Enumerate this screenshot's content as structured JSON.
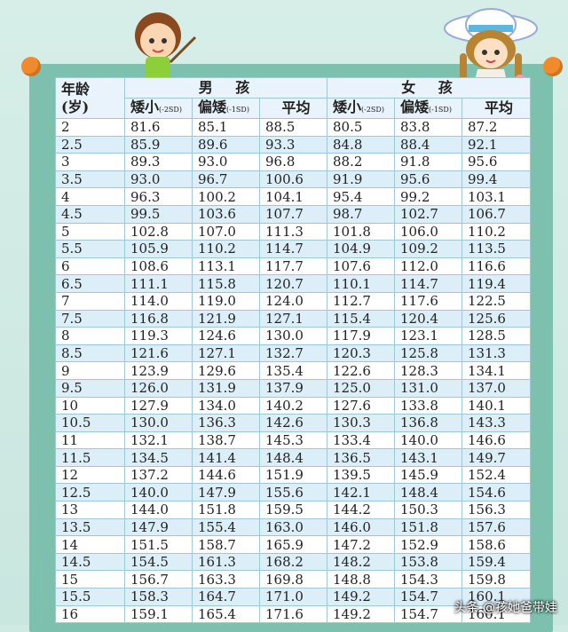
{
  "headers": {
    "age_label_1": "年龄",
    "age_label_2": "(岁)",
    "boy_group": "男 孩",
    "girl_group": "女 孩",
    "col_short": "矮小",
    "col_short_note": "(-2SD)",
    "col_low": "偏矮",
    "col_low_note": "(-1SD)",
    "col_avg": "平均"
  },
  "rows": [
    [
      "2",
      "81.6",
      "85.1",
      "88.5",
      "80.5",
      "83.8",
      "87.2"
    ],
    [
      "2.5",
      "85.9",
      "89.6",
      "93.3",
      "84.8",
      "88.4",
      "92.1"
    ],
    [
      "3",
      "89.3",
      "93.0",
      "96.8",
      "88.2",
      "91.8",
      "95.6"
    ],
    [
      "3.5",
      "93.0",
      "96.7",
      "100.6",
      "91.9",
      "95.6",
      "99.4"
    ],
    [
      "4",
      "96.3",
      "100.2",
      "104.1",
      "95.4",
      "99.2",
      "103.1"
    ],
    [
      "4.5",
      "99.5",
      "103.6",
      "107.7",
      "98.7",
      "102.7",
      "106.7"
    ],
    [
      "5",
      "102.8",
      "107.0",
      "111.3",
      "101.8",
      "106.0",
      "110.2"
    ],
    [
      "5.5",
      "105.9",
      "110.2",
      "114.7",
      "104.9",
      "109.2",
      "113.5"
    ],
    [
      "6",
      "108.6",
      "113.1",
      "117.7",
      "107.6",
      "112.0",
      "116.6"
    ],
    [
      "6.5",
      "111.1",
      "115.8",
      "120.7",
      "110.1",
      "114.7",
      "119.4"
    ],
    [
      "7",
      "114.0",
      "119.0",
      "124.0",
      "112.7",
      "117.6",
      "122.5"
    ],
    [
      "7.5",
      "116.8",
      "121.9",
      "127.1",
      "115.4",
      "120.4",
      "125.6"
    ],
    [
      "8",
      "119.3",
      "124.6",
      "130.0",
      "117.9",
      "123.1",
      "128.5"
    ],
    [
      "8.5",
      "121.6",
      "127.1",
      "132.7",
      "120.3",
      "125.8",
      "131.3"
    ],
    [
      "9",
      "123.9",
      "129.6",
      "135.4",
      "122.6",
      "128.3",
      "134.1"
    ],
    [
      "9.5",
      "126.0",
      "131.9",
      "137.9",
      "125.0",
      "131.0",
      "137.0"
    ],
    [
      "10",
      "127.9",
      "134.0",
      "140.2",
      "127.6",
      "133.8",
      "140.1"
    ],
    [
      "10.5",
      "130.0",
      "136.3",
      "142.6",
      "130.3",
      "136.8",
      "143.3"
    ],
    [
      "11",
      "132.1",
      "138.7",
      "145.3",
      "133.4",
      "140.0",
      "146.6"
    ],
    [
      "11.5",
      "134.5",
      "141.4",
      "148.4",
      "136.5",
      "143.1",
      "149.7"
    ],
    [
      "12",
      "137.2",
      "144.6",
      "151.9",
      "139.5",
      "145.9",
      "152.4"
    ],
    [
      "12.5",
      "140.0",
      "147.9",
      "155.6",
      "142.1",
      "148.4",
      "154.6"
    ],
    [
      "13",
      "144.0",
      "151.8",
      "159.5",
      "144.2",
      "150.3",
      "156.3"
    ],
    [
      "13.5",
      "147.9",
      "155.4",
      "163.0",
      "146.0",
      "151.8",
      "157.6"
    ],
    [
      "14",
      "151.5",
      "158.7",
      "165.9",
      "147.2",
      "152.9",
      "158.6"
    ],
    [
      "14.5",
      "154.5",
      "161.3",
      "168.2",
      "148.2",
      "153.8",
      "159.4"
    ],
    [
      "15",
      "156.7",
      "163.3",
      "169.8",
      "148.8",
      "154.3",
      "159.8"
    ],
    [
      "15.5",
      "158.3",
      "164.7",
      "171.0",
      "149.2",
      "154.7",
      "160.1"
    ],
    [
      "16",
      "159.1",
      "165.4",
      "171.6",
      "149.2",
      "154.7",
      "160.1"
    ]
  ],
  "watermark": "头条 @孩她爸带娃",
  "colors": {
    "board": "#7cc0ad",
    "pin": "#f08a2c",
    "row_alt": "#dceef8",
    "grid": "#9fc7d8"
  }
}
